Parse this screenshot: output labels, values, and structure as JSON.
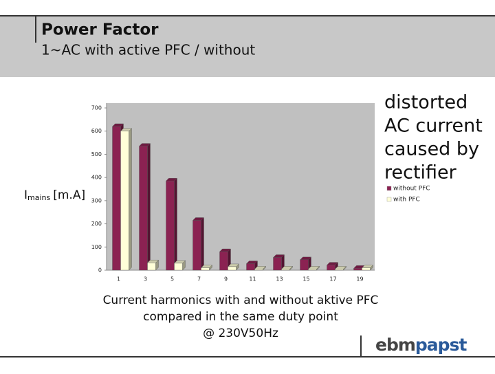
{
  "header": {
    "title": "Power Factor",
    "subtitle": "1~AC with active PFC / without"
  },
  "annotation": [
    "distorted",
    "AC current",
    "caused by",
    "rectifier"
  ],
  "caption": [
    "Current harmonics with and without aktive PFC",
    "compared in the same duty point",
    "@ 230V50Hz"
  ],
  "logo": [
    "ebm",
    "papst"
  ],
  "chart_data": {
    "type": "bar",
    "ylabel": "I",
    "ylabel_subscript": "mains",
    "ylabel_unit": "[m.A]",
    "categories": [
      "1",
      "3",
      "5",
      "7",
      "9",
      "11",
      "13",
      "15",
      "17",
      "19"
    ],
    "series": [
      {
        "name": "without PFC",
        "color": "#8b2252",
        "values": [
          620,
          535,
          385,
          215,
          80,
          28,
          55,
          45,
          22,
          8
        ]
      },
      {
        "name": "with PFC",
        "color": "#ffffd8",
        "values": [
          600,
          32,
          30,
          10,
          15,
          5,
          5,
          5,
          5,
          10
        ]
      }
    ],
    "ylim": [
      0,
      700
    ],
    "yticks": [
      0,
      100,
      200,
      300,
      400,
      500,
      600,
      700
    ],
    "grid": false
  }
}
